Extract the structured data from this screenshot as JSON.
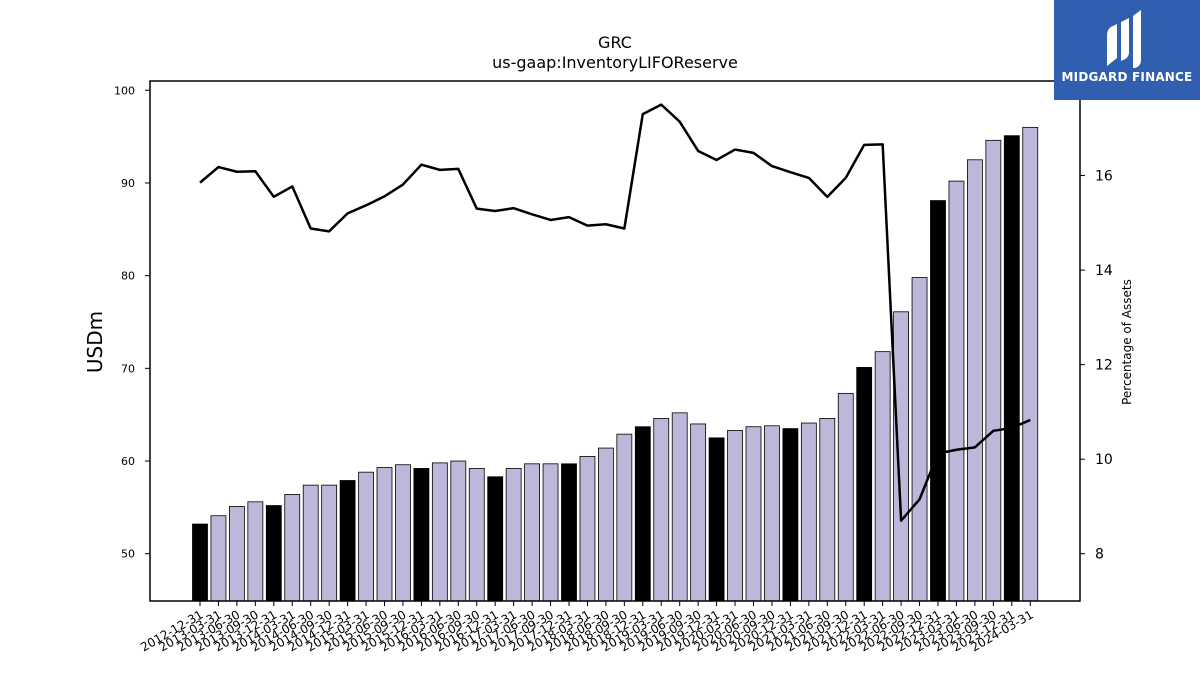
{
  "logo": {
    "text": "MIDGARD FINANCE"
  },
  "chart_data": {
    "type": "bar",
    "title": "GRC",
    "subtitle": "us-gaap:InventoryLIFOReserve",
    "ylabel": "USDm",
    "y2label": "Percentage of Assets",
    "ylim": [
      44.9,
      101
    ],
    "y2lim": [
      7,
      18
    ],
    "yticks": [
      50,
      60,
      70,
      80,
      90,
      100
    ],
    "y2ticks": [
      8,
      10,
      12,
      14,
      16
    ],
    "colors": {
      "q4_bar": "#000000",
      "other_bar": "#bcb8da",
      "line": "#000000"
    },
    "categories": [
      "2012-12-31",
      "2013-03-31",
      "2013-06-30",
      "2013-09-30",
      "2013-12-31",
      "2014-03-31",
      "2014-06-30",
      "2014-09-30",
      "2014-12-31",
      "2015-03-31",
      "2015-06-30",
      "2015-09-30",
      "2015-12-31",
      "2016-03-31",
      "2016-06-30",
      "2016-09-30",
      "2016-12-31",
      "2017-03-31",
      "2017-06-30",
      "2017-09-30",
      "2017-12-31",
      "2018-03-31",
      "2018-06-30",
      "2018-09-30",
      "2018-12-31",
      "2019-03-31",
      "2019-06-30",
      "2019-09-30",
      "2019-12-31",
      "2020-03-31",
      "2020-06-30",
      "2020-09-30",
      "2020-12-31",
      "2021-03-31",
      "2021-06-30",
      "2021-09-30",
      "2021-12-31",
      "2022-03-31",
      "2022-06-30",
      "2022-09-30",
      "2022-12-31",
      "2023-03-31",
      "2023-06-30",
      "2023-09-30",
      "2023-12-31",
      "2024-03-31"
    ],
    "series": [
      {
        "type": "bar",
        "values": [
          53.2,
          54.1,
          55.1,
          55.6,
          55.2,
          56.4,
          57.4,
          57.4,
          57.9,
          58.8,
          59.3,
          59.6,
          59.2,
          59.8,
          60.0,
          59.2,
          58.3,
          59.2,
          59.7,
          59.7,
          59.7,
          60.5,
          61.4,
          62.9,
          63.7,
          64.6,
          65.2,
          64.0,
          62.5,
          63.3,
          63.7,
          63.8,
          63.5,
          64.1,
          64.6,
          67.3,
          70.1,
          71.8,
          76.1,
          79.8,
          88.1,
          90.2,
          92.5,
          94.6,
          95.1,
          96.0
        ]
      },
      {
        "type": "line",
        "axis": "right",
        "values": [
          15.85,
          16.18,
          16.08,
          16.09,
          15.55,
          15.77,
          14.88,
          14.82,
          15.2,
          15.37,
          15.56,
          15.81,
          16.23,
          16.12,
          16.14,
          15.3,
          15.25,
          15.31,
          15.18,
          15.06,
          15.12,
          14.94,
          14.97,
          14.88,
          17.3,
          17.5,
          17.14,
          16.52,
          16.33,
          16.55,
          16.48,
          16.2,
          16.07,
          15.95,
          15.55,
          15.95,
          16.65,
          16.66,
          8.7,
          9.15,
          10.12,
          10.2,
          10.25,
          10.6,
          10.66,
          10.83
        ]
      }
    ]
  }
}
